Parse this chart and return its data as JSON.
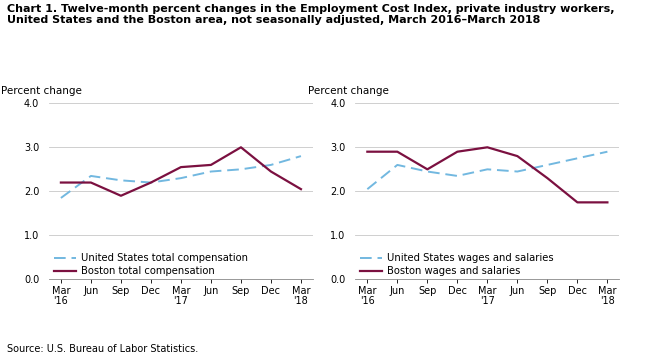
{
  "title_line1": "Chart 1. Twelve-month percent changes in the Employment Cost Index, private industry workers,",
  "title_line2": "United States and the Boston area, not seasonally adjusted, March 2016–March 2018",
  "source": "Source: U.S. Bureau of Labor Statistics.",
  "ylabel": "Percent change",
  "ylim": [
    0.0,
    4.0
  ],
  "yticks": [
    0.0,
    1.0,
    2.0,
    3.0,
    4.0
  ],
  "x_labels": [
    "Mar\n'16",
    "Jun",
    "Sep",
    "Dec",
    "Mar\n'17",
    "Jun",
    "Sep",
    "Dec",
    "Mar\n'18"
  ],
  "left_chart": {
    "us_total_comp": [
      1.85,
      2.35,
      2.25,
      2.2,
      2.3,
      2.45,
      2.5,
      2.6,
      2.8
    ],
    "boston_total_comp": [
      2.2,
      2.2,
      1.9,
      2.2,
      2.55,
      2.6,
      3.0,
      2.45,
      2.05
    ],
    "us_label": "United States total compensation",
    "boston_label": "Boston total compensation"
  },
  "right_chart": {
    "us_wages_salaries": [
      2.05,
      2.6,
      2.45,
      2.35,
      2.5,
      2.45,
      2.6,
      2.75,
      2.9
    ],
    "boston_wages_salaries": [
      2.9,
      2.9,
      2.5,
      2.9,
      3.0,
      2.8,
      2.3,
      1.75,
      1.75
    ],
    "us_label": "United States wages and salaries",
    "boston_label": "Boston wages and salaries"
  },
  "us_color": "#72b8e0",
  "boston_color": "#7b1040",
  "grid_color": "#c8c8c8",
  "background_color": "#ffffff",
  "title_fontsize": 8.0,
  "label_fontsize": 7.5,
  "tick_fontsize": 7.0,
  "legend_fontsize": 7.2,
  "source_fontsize": 7.0
}
